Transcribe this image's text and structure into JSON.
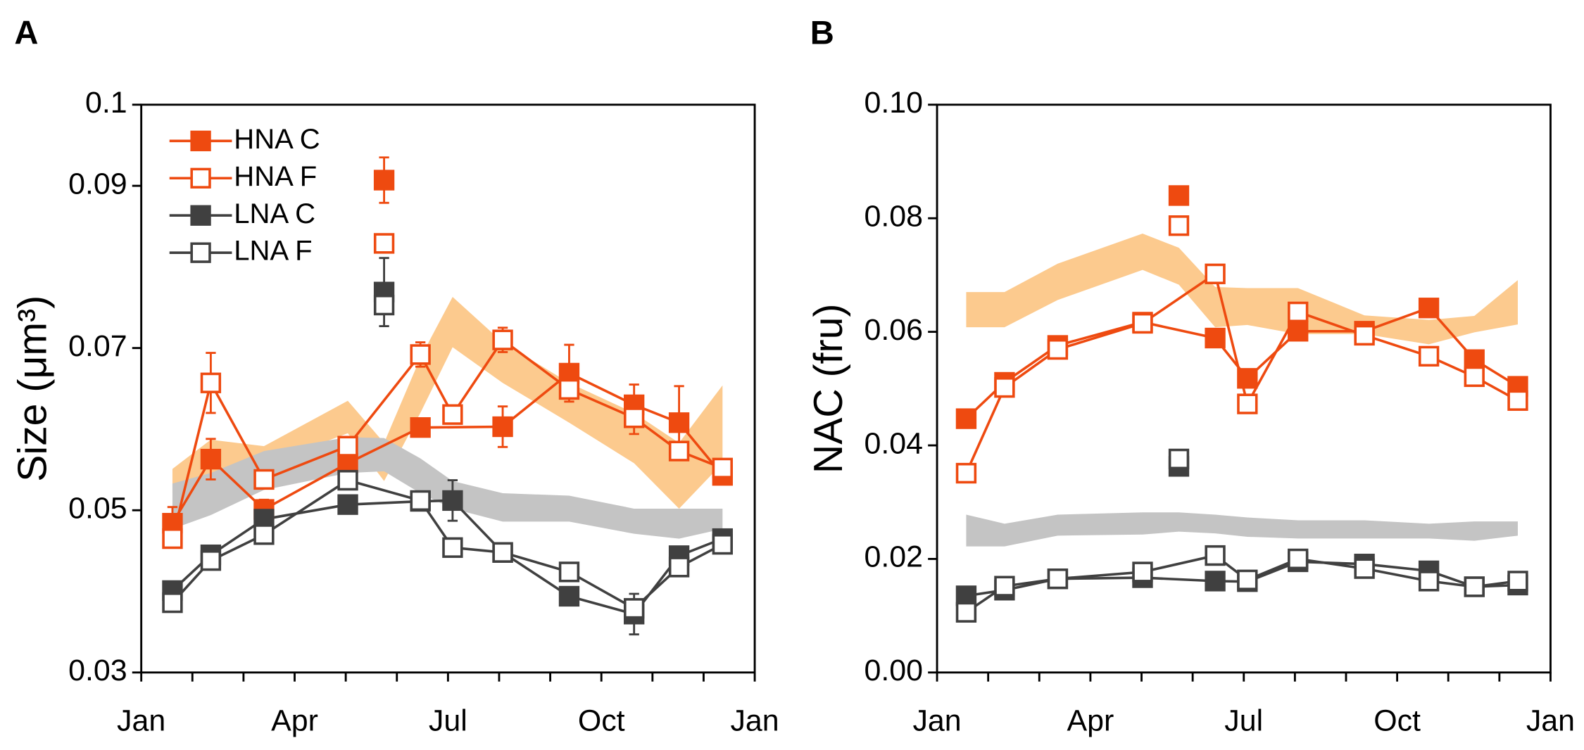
{
  "chart_data": [
    {
      "type": "line",
      "panel": "A",
      "ylabel": "Size (μm³)",
      "xlim": [
        0,
        12
      ],
      "xticks": [
        {
          "value": 0,
          "label": "Jan"
        },
        {
          "value": 3,
          "label": "Apr"
        },
        {
          "value": 6,
          "label": "Jul"
        },
        {
          "value": 9,
          "label": "Oct"
        },
        {
          "value": 12,
          "label": "Jan"
        }
      ],
      "xminorticks": [
        1,
        2,
        4,
        5,
        7,
        8,
        10,
        11
      ],
      "ylim": [
        0.03,
        0.1
      ],
      "yticks": [
        0.03,
        0.05,
        0.07,
        0.09,
        0.1
      ],
      "legend": true,
      "bands": [
        {
          "color": "#fcca8e",
          "x": [
            0.61,
            1.36,
            2.4,
            4.04,
            4.75,
            5.46,
            6.09,
            7.07,
            8.37,
            9.64,
            10.52,
            11.37
          ],
          "upper": [
            0.0551,
            0.0587,
            0.0579,
            0.0635,
            0.0583,
            0.0688,
            0.0763,
            0.0707,
            0.0657,
            0.062,
            0.0583,
            0.0654
          ],
          "lower": [
            0.0521,
            0.0546,
            0.0556,
            0.0595,
            0.0536,
            0.062,
            0.0701,
            0.0657,
            0.0608,
            0.0558,
            0.0502,
            0.0558
          ]
        },
        {
          "color": "#c4c4c4",
          "x": [
            0.61,
            1.36,
            2.4,
            4.04,
            4.75,
            5.46,
            6.09,
            7.07,
            8.37,
            9.64,
            10.52,
            11.37
          ],
          "upper": [
            0.0533,
            0.0546,
            0.0573,
            0.059,
            0.0589,
            0.0564,
            0.0536,
            0.0521,
            0.0518,
            0.0502,
            0.0502,
            0.0502
          ],
          "lower": [
            0.0477,
            0.0494,
            0.0525,
            0.0546,
            0.0548,
            0.0521,
            0.0502,
            0.0486,
            0.0486,
            0.0471,
            0.0465,
            0.0477
          ]
        }
      ],
      "series": [
        {
          "name": "HNA C",
          "color": "#ee4a10",
          "filled": true,
          "x": [
            0.61,
            1.36,
            2.4,
            4.04,
            5.46,
            7.07,
            8.37,
            9.64,
            10.52,
            11.37
          ],
          "values": [
            0.0484,
            0.0563,
            0.0501,
            0.0558,
            0.0602,
            0.0603,
            0.0669,
            0.063,
            0.0608,
            0.0543
          ],
          "errors": [
            0.002,
            0.0025,
            0.0012,
            0.001,
            0.001,
            0.0025,
            0.0035,
            0.0025,
            0.0045,
            0.001
          ],
          "outlier_x": 4.75,
          "outlier_value": 0.0907,
          "outlier_error": 0.0028
        },
        {
          "name": "HNA F",
          "color": "#ee4a10",
          "filled": false,
          "x": [
            0.61,
            1.36,
            2.4,
            4.04,
            5.46,
            6.09,
            7.07,
            8.37,
            9.64,
            10.52,
            11.37
          ],
          "values": [
            0.0465,
            0.0657,
            0.0538,
            0.0579,
            0.0692,
            0.0618,
            0.071,
            0.0649,
            0.0614,
            0.0573,
            0.0552
          ],
          "errors": [
            0.001,
            0.0037,
            0.0005,
            0.0005,
            0.0015,
            0.0005,
            0.0015,
            0.0007,
            0.002,
            0.0005,
            0.0005
          ],
          "outlier_x": 4.75,
          "outlier_value": 0.0829
        },
        {
          "name": "LNA C",
          "color": "#404040",
          "filled": true,
          "x": [
            0.61,
            1.36,
            2.4,
            4.04,
            5.46,
            6.09,
            7.07,
            8.37,
            9.64,
            10.52,
            11.37
          ],
          "values": [
            0.0401,
            0.0445,
            0.0489,
            0.0507,
            0.0511,
            0.0512,
            0.0448,
            0.0394,
            0.0372,
            0.0444,
            0.0465
          ],
          "errors": [
            0.0005,
            0.0005,
            0.0005,
            0.0008,
            0.0005,
            0.0025,
            0.0005,
            0.0008,
            0.0025,
            0.0005,
            0.0005
          ],
          "outlier_x": 4.75,
          "outlier_value": 0.0769,
          "outlier_error": 0.0042
        },
        {
          "name": "LNA F",
          "color": "#404040",
          "filled": false,
          "x": [
            0.61,
            1.36,
            2.4,
            4.04,
            5.46,
            6.09,
            7.07,
            8.37,
            9.64,
            10.52,
            11.37
          ],
          "values": [
            0.0386,
            0.0438,
            0.047,
            0.0537,
            0.0512,
            0.0454,
            0.0448,
            0.0424,
            0.0379,
            0.043,
            0.0458
          ],
          "outlier_x": 4.75,
          "outlier_value": 0.0753
        }
      ]
    },
    {
      "type": "line",
      "panel": "B",
      "ylabel": "NAC (fru)",
      "xlim": [
        0,
        12
      ],
      "xticks": [
        {
          "value": 0,
          "label": "Jan"
        },
        {
          "value": 3,
          "label": "Apr"
        },
        {
          "value": 6,
          "label": "Jul"
        },
        {
          "value": 9,
          "label": "Oct"
        },
        {
          "value": 12,
          "label": "Jan"
        }
      ],
      "xminorticks": [
        1,
        2,
        4,
        5,
        7,
        8,
        10,
        11
      ],
      "ylim": [
        0,
        0.1
      ],
      "yticks": [
        {
          "value": 0,
          "label": "0.00"
        },
        0.02,
        0.04,
        0.06,
        0.08,
        {
          "value": 0.1,
          "label": "0.10"
        }
      ],
      "legend": false,
      "bands": [
        {
          "color": "#fcca8e",
          "x": [
            0.57,
            1.32,
            2.36,
            4.02,
            4.73,
            5.44,
            6.07,
            7.06,
            8.36,
            9.62,
            10.51,
            11.36
          ],
          "upper": [
            0.067,
            0.067,
            0.072,
            0.0773,
            0.0748,
            0.0679,
            0.0677,
            0.0677,
            0.0629,
            0.0621,
            0.0628,
            0.0691
          ],
          "lower": [
            0.0608,
            0.0608,
            0.0656,
            0.0709,
            0.0683,
            0.0608,
            0.0612,
            0.0596,
            0.0596,
            0.0578,
            0.0599,
            0.0613
          ]
        },
        {
          "color": "#c4c4c4",
          "x": [
            0.57,
            1.32,
            2.36,
            4.02,
            4.73,
            5.44,
            6.07,
            7.06,
            8.36,
            9.62,
            10.51,
            11.36
          ],
          "upper": [
            0.0278,
            0.0262,
            0.0278,
            0.0282,
            0.0282,
            0.0278,
            0.0273,
            0.0268,
            0.0268,
            0.0262,
            0.0266,
            0.0266
          ],
          "lower": [
            0.0222,
            0.0222,
            0.0241,
            0.0243,
            0.0248,
            0.0245,
            0.0239,
            0.0236,
            0.0236,
            0.0236,
            0.0232,
            0.0241
          ]
        }
      ],
      "series": [
        {
          "name": "HNA C",
          "color": "#ee4a10",
          "filled": true,
          "x": [
            0.57,
            1.32,
            2.36,
            4.02,
            5.44,
            6.07,
            7.06,
            8.36,
            9.62,
            10.51,
            11.36
          ],
          "values": [
            0.0447,
            0.0511,
            0.0576,
            0.0617,
            0.0589,
            0.0518,
            0.0601,
            0.0601,
            0.0642,
            0.0551,
            0.0504
          ],
          "outlier_x": 4.73,
          "outlier_value": 0.084
        },
        {
          "name": "HNA F",
          "color": "#ee4a10",
          "filled": false,
          "x": [
            0.57,
            1.32,
            2.36,
            4.02,
            5.44,
            6.07,
            7.06,
            8.36,
            9.62,
            10.51,
            11.36
          ],
          "values": [
            0.0351,
            0.0502,
            0.0569,
            0.0615,
            0.0702,
            0.0473,
            0.0635,
            0.0594,
            0.0557,
            0.0521,
            0.0479
          ],
          "outlier_x": 4.73,
          "outlier_value": 0.0787
        },
        {
          "name": "LNA C",
          "color": "#404040",
          "filled": true,
          "x": [
            0.57,
            1.32,
            2.36,
            4.02,
            5.44,
            6.07,
            7.06,
            8.36,
            9.62,
            10.51,
            11.36
          ],
          "values": [
            0.0135,
            0.0145,
            0.0165,
            0.0167,
            0.0161,
            0.016,
            0.0195,
            0.0191,
            0.0179,
            0.0151,
            0.0154
          ],
          "outlier_x": 4.73,
          "outlier_value": 0.0363
        },
        {
          "name": "LNA F",
          "color": "#404040",
          "filled": false,
          "x": [
            0.57,
            1.32,
            2.36,
            4.02,
            5.44,
            6.07,
            7.06,
            8.36,
            9.62,
            10.51,
            11.36
          ],
          "values": [
            0.0106,
            0.0152,
            0.0165,
            0.0177,
            0.0206,
            0.0163,
            0.02,
            0.0183,
            0.0161,
            0.0151,
            0.0161
          ],
          "outlier_x": 4.73,
          "outlier_value": 0.0376
        }
      ]
    }
  ]
}
